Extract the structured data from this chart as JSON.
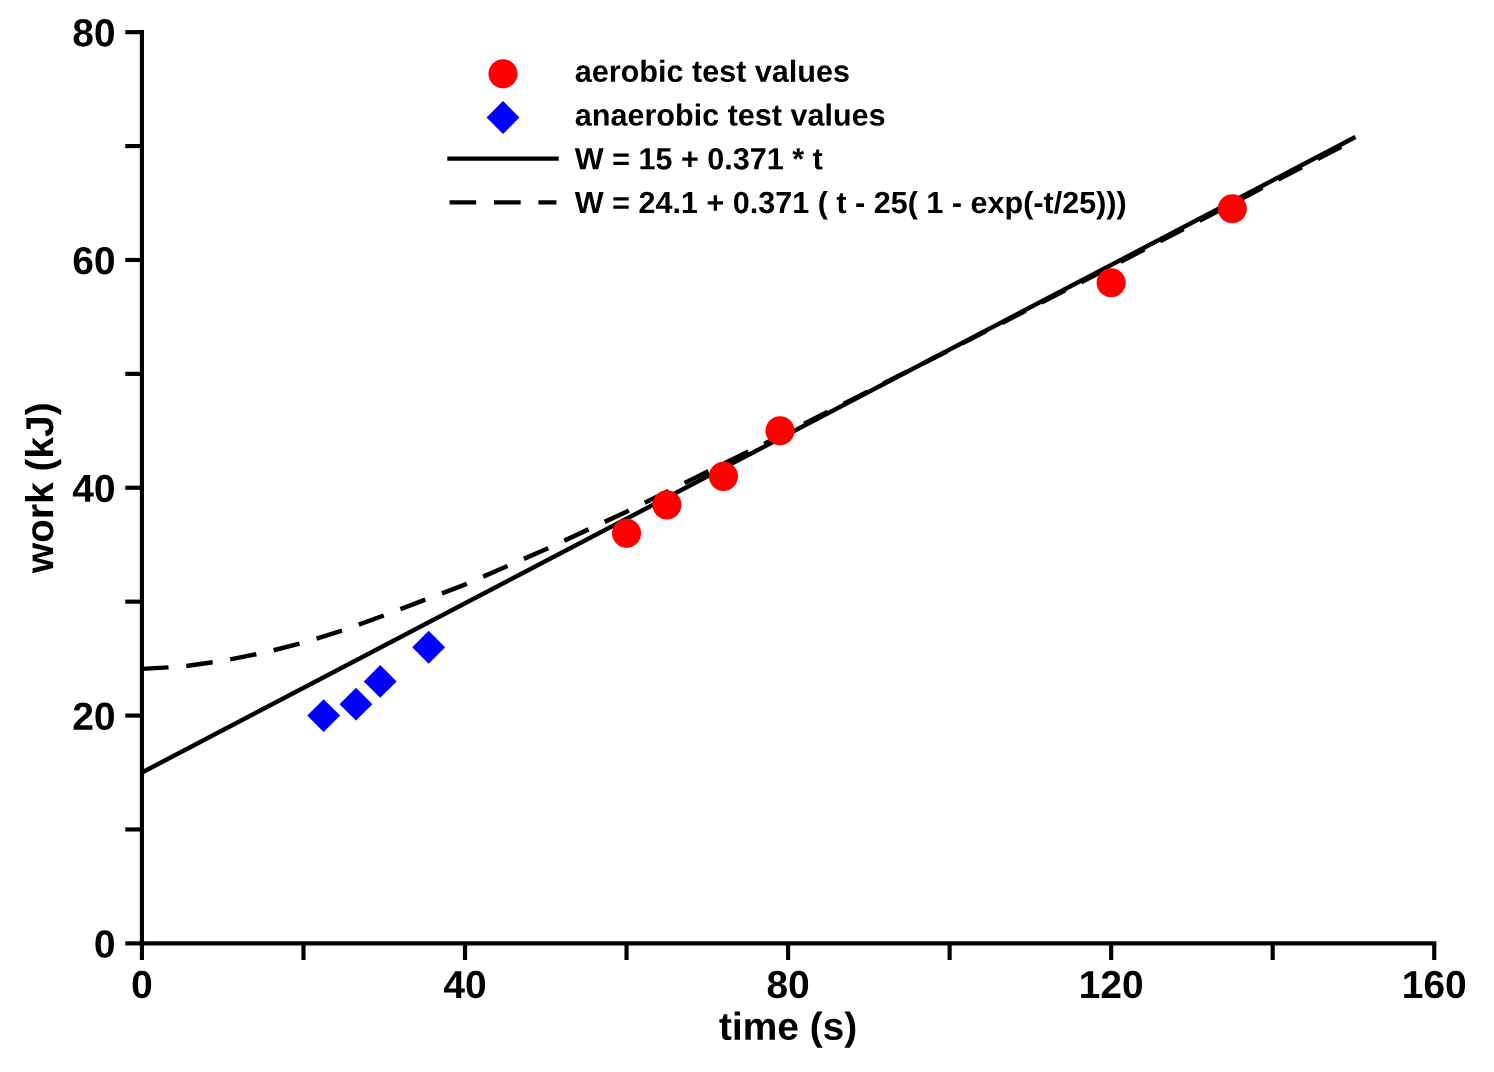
{
  "chart_data": {
    "type": "scatter",
    "xlabel": "time (s)",
    "ylabel": "work (kJ)",
    "xlim": [
      0,
      160
    ],
    "ylim": [
      0,
      80
    ],
    "xticks": [
      0,
      {
        "value": 20,
        "label": null
      },
      40,
      {
        "value": 60,
        "label": null
      },
      80,
      {
        "value": 100,
        "label": null
      },
      120,
      {
        "value": 140,
        "label": null
      },
      160
    ],
    "yticks": [
      0,
      {
        "value": 10,
        "label": null
      },
      20,
      {
        "value": 30,
        "label": null
      },
      40,
      {
        "value": 50,
        "label": null
      },
      60,
      {
        "value": 70,
        "label": null
      },
      80
    ],
    "grid": false,
    "legend": "top",
    "series": [
      {
        "name": "aerobic test values",
        "marker": "circle",
        "color": "#ff0000",
        "x": [
          60,
          65,
          72,
          79,
          120,
          135
        ],
        "values": [
          36,
          38.5,
          41,
          45,
          58,
          64.5
        ]
      },
      {
        "name": "anaerobic test values",
        "marker": "diamond",
        "color": "#0000ff",
        "x": [
          22.5,
          26.5,
          29.5,
          35.5
        ],
        "values": [
          20,
          21,
          23,
          26
        ]
      },
      {
        "name": "W = 15 + 0.371 * t",
        "type": "line",
        "line_style": "solid",
        "marker": "none",
        "color": "#000000",
        "x": [
          0,
          150
        ],
        "values": [
          15,
          70.7
        ]
      },
      {
        "name": "W = 24.1 + 0.371 ( t - 25( 1 - exp(-t/25)))",
        "type": "line",
        "line_style": "dashed",
        "marker": "none",
        "color": "#000000",
        "x": [
          0,
          5,
          10,
          15,
          20,
          25,
          30,
          40,
          50,
          60,
          70,
          80,
          100,
          120,
          150
        ],
        "values": [
          24.1,
          24.3,
          24.8,
          25.5,
          26.4,
          27.5,
          28.8,
          31.5,
          34.6,
          37.9,
          41.4,
          44.9,
          52.1,
          59.4,
          70.5
        ]
      }
    ]
  }
}
